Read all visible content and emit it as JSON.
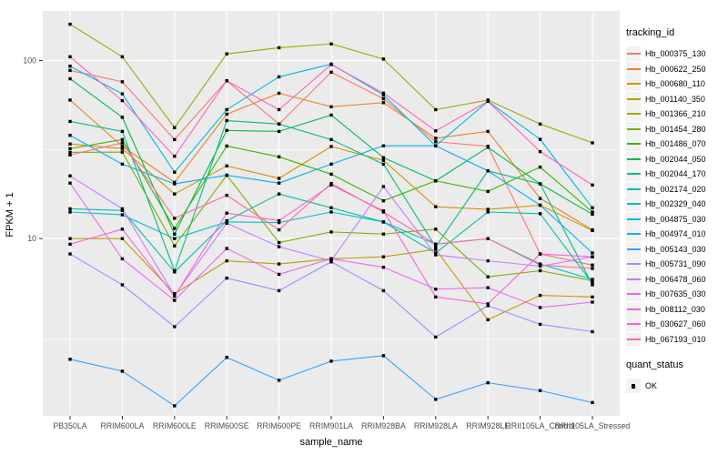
{
  "figure": {
    "background": "#FFFFFF",
    "panel_background": "#EBEBEB",
    "gridline_color": "#FFFFFF",
    "point_color": "#000000",
    "tick_color": "#333333",
    "tick_label_color": "#4D4D4D",
    "axis_title_color": "#000000"
  },
  "legend": {
    "tracking_title": "tracking_id",
    "quant_title": "quant_status",
    "quant_items": [
      {
        "label": "OK",
        "marker": "black-square"
      }
    ]
  },
  "chart_data": {
    "type": "line",
    "title": "",
    "xlabel": "sample_name",
    "ylabel": "FPKM + 1",
    "y_scale": "log10",
    "ylim": [
      1.01,
      190
    ],
    "grid": true,
    "legend_position": "right",
    "marker": "black-square",
    "x_categories": [
      "PB350LA",
      "RRIM600LA",
      "RRIM600LE",
      "RRIM600SE",
      "RRIM600PE",
      "RRIM901LA",
      "RRIM928BA",
      "RRIM928LA",
      "RRIM928LE",
      "RRII105LA_Control",
      "RRII105LA_Stressed"
    ],
    "y_ticks": [
      {
        "value": 100,
        "label": "100"
      },
      {
        "value": 10,
        "label": "10"
      }
    ],
    "y_minor_gridlines": [
      31.6,
      2.72
    ],
    "series": [
      {
        "name": "Hb_000375_130",
        "color": "#F8766D",
        "values": [
          88,
          76,
          36,
          77,
          44,
          86,
          61,
          35,
          33,
          8.2,
          7.1
        ]
      },
      {
        "name": "Hb_000622_250",
        "color": "#E88526",
        "values": [
          60,
          33,
          20.7,
          50,
          65.5,
          55,
          58,
          36.6,
          40,
          16.8,
          11.2
        ]
      },
      {
        "name": "Hb_000680_110",
        "color": "#D89000",
        "values": [
          34,
          32,
          17.8,
          25.6,
          21.8,
          32.9,
          27.5,
          15.1,
          14.6,
          15.4,
          11.1
        ]
      },
      {
        "name": "Hb_001140_350",
        "color": "#C09B00",
        "values": [
          10,
          10,
          4.9,
          7.5,
          7.2,
          7.7,
          7.9,
          8.7,
          3.5,
          4.8,
          4.7
        ]
      },
      {
        "name": "Hb_001366_210",
        "color": "#A3A500",
        "values": [
          160,
          105,
          42,
          109,
          118,
          124,
          102,
          53,
          60,
          44,
          34.5
        ]
      },
      {
        "name": "Hb_001454_280",
        "color": "#7CAE00",
        "values": [
          30.5,
          30.6,
          9.1,
          22.7,
          9.5,
          10.9,
          10.6,
          11.3,
          6.1,
          6.6,
          5.8
        ]
      },
      {
        "name": "Hb_001486_070",
        "color": "#39B600",
        "values": [
          32,
          36,
          11.4,
          33.1,
          28.8,
          23,
          16.3,
          21.1,
          18.4,
          25.2,
          14.1
        ]
      },
      {
        "name": "Hb_002044_050",
        "color": "#00BB4E",
        "values": [
          79,
          48,
          10.6,
          40.5,
          40,
          49.4,
          28.5,
          21.1,
          32.6,
          20.3,
          13.7
        ]
      },
      {
        "name": "Hb_002044_170",
        "color": "#00BF7D",
        "values": [
          45.5,
          40,
          6.6,
          46,
          44,
          36,
          26.2,
          9.0,
          24,
          20.3,
          5.5
        ]
      },
      {
        "name": "Hb_002174_020",
        "color": "#00C1A3",
        "values": [
          14.7,
          14.4,
          6.5,
          12.6,
          17.8,
          14.9,
          12.4,
          8.3,
          14.1,
          13.8,
          5.6
        ]
      },
      {
        "name": "Hb_002329_040",
        "color": "#00BFC4",
        "values": [
          14.1,
          13.6,
          10.0,
          12.4,
          12.3,
          14.1,
          12.4,
          9.3,
          10.0,
          7.2,
          5.9
        ]
      },
      {
        "name": "Hb_004875_030",
        "color": "#00BAE0",
        "values": [
          93,
          65,
          23.6,
          53,
          81,
          95.5,
          64,
          33.2,
          59,
          36.1,
          14.9
        ]
      },
      {
        "name": "Hb_004974_010",
        "color": "#00B0F6",
        "values": [
          38,
          26.2,
          20.3,
          22.7,
          20.5,
          26.2,
          33.2,
          33.2,
          24,
          15.4,
          8.3
        ]
      },
      {
        "name": "Hb_005143_030",
        "color": "#35A2FF",
        "values": [
          2.1,
          1.8,
          1.15,
          2.15,
          1.6,
          2.05,
          2.2,
          1.25,
          1.55,
          1.4,
          1.2
        ]
      },
      {
        "name": "Hb_005731_090",
        "color": "#9590FF",
        "values": [
          8.2,
          5.5,
          3.2,
          6.0,
          5.1,
          7.4,
          5.1,
          2.8,
          4.2,
          3.3,
          3.0
        ]
      },
      {
        "name": "Hb_006478_060",
        "color": "#C77CFF",
        "values": [
          22.5,
          14.7,
          4.8,
          12.2,
          9.0,
          7.5,
          19.6,
          8.1,
          7.5,
          7.0,
          7.9
        ]
      },
      {
        "name": "Hb_007635_030",
        "color": "#E76BF3",
        "values": [
          20.5,
          7.7,
          4.5,
          8.8,
          6.3,
          7.7,
          6.9,
          5.2,
          5.3,
          4.1,
          4.4
        ]
      },
      {
        "name": "Hb_008112_030",
        "color": "#FA62DB",
        "values": [
          9.3,
          11.3,
          4.75,
          13.9,
          12.6,
          20.0,
          14.3,
          4.7,
          4.3,
          8.2,
          7.9
        ]
      },
      {
        "name": "Hb_030627_060",
        "color": "#FF62BC",
        "values": [
          105,
          59.5,
          29,
          77,
          53,
          95,
          65.6,
          40.3,
          59,
          30.8,
          20.0
        ]
      },
      {
        "name": "Hb_067193_010",
        "color": "#FF6A98",
        "values": [
          29.5,
          34.5,
          13.0,
          17.5,
          11.2,
          20.4,
          14.1,
          9.3,
          10.0,
          7.1,
          6.8
        ]
      }
    ]
  }
}
